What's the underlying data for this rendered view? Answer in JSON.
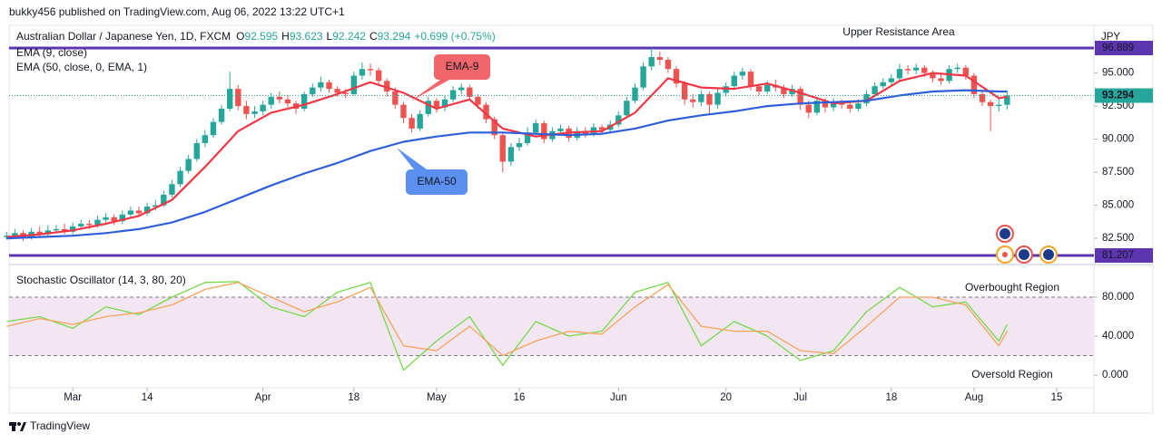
{
  "header": {
    "publisher": "bukky456 published on TradingView.com, Aug 06, 2022 13:22 UTC+1"
  },
  "chart_data": [
    {
      "type": "candlestick",
      "symbol": "Australian Dollar / Japanese Yen, 1D, FXCM",
      "ohlc_legend": [
        {
          "key": "O",
          "value": "92.595"
        },
        {
          "key": "H",
          "value": "93.623"
        },
        {
          "key": "L",
          "value": "92.242"
        },
        {
          "key": "C",
          "value": "93.294"
        }
      ],
      "change": "+0.699 (+0.75%)",
      "currency": "JPY",
      "up_color": "#26a69a",
      "down_color": "#ef5350",
      "x": [
        -8,
        -7,
        -6,
        -5,
        -4,
        -3,
        -2,
        -1,
        0,
        1,
        2,
        3,
        4,
        5,
        6,
        7,
        8,
        9,
        10,
        11,
        12,
        13,
        14,
        15,
        16,
        17,
        18,
        19,
        20,
        21,
        22,
        23,
        24,
        25,
        26,
        27,
        28,
        29,
        30,
        31,
        32,
        33,
        34,
        35,
        36,
        37,
        38,
        39,
        40,
        41,
        42,
        43,
        44,
        45,
        46,
        47,
        48,
        49,
        50,
        51,
        52,
        53,
        54,
        55,
        56,
        57,
        58,
        59,
        60,
        61,
        62,
        63,
        64,
        65,
        66,
        67,
        68,
        69,
        70,
        71,
        72,
        73,
        74,
        75,
        76,
        77,
        78,
        79,
        80,
        81,
        82,
        83,
        84,
        85,
        86,
        87,
        88,
        89,
        90,
        91,
        92,
        93,
        94,
        95,
        96,
        97,
        98,
        99,
        100,
        101,
        102,
        103,
        104,
        105,
        106,
        107,
        108,
        109,
        110,
        111,
        112,
        113
      ],
      "ohlc": [
        [
          82.6,
          83.0,
          82.4,
          82.7
        ],
        [
          82.7,
          83.2,
          82.5,
          82.9
        ],
        [
          82.9,
          83.1,
          82.3,
          82.6
        ],
        [
          82.6,
          83.3,
          82.4,
          83.0
        ],
        [
          83.0,
          83.4,
          82.6,
          82.8
        ],
        [
          82.8,
          83.5,
          82.6,
          83.1
        ],
        [
          83.1,
          83.5,
          82.9,
          83.2
        ],
        [
          83.2,
          83.6,
          82.8,
          83.0
        ],
        [
          83.0,
          83.7,
          82.8,
          83.4
        ],
        [
          83.4,
          83.9,
          83.2,
          83.6
        ],
        [
          83.6,
          83.9,
          83.2,
          83.5
        ],
        [
          83.5,
          84.2,
          83.3,
          83.9
        ],
        [
          83.9,
          84.4,
          83.7,
          84.1
        ],
        [
          84.1,
          84.3,
          83.5,
          83.8
        ],
        [
          83.8,
          84.6,
          83.6,
          84.3
        ],
        [
          84.3,
          84.9,
          84.0,
          84.6
        ],
        [
          84.6,
          84.9,
          84.1,
          84.4
        ],
        [
          84.4,
          85.2,
          84.2,
          84.9
        ],
        [
          84.9,
          85.4,
          84.6,
          85.0
        ],
        [
          85.0,
          86.1,
          84.9,
          85.8
        ],
        [
          85.8,
          86.9,
          85.6,
          86.6
        ],
        [
          86.6,
          87.9,
          86.4,
          87.6
        ],
        [
          87.6,
          88.8,
          87.4,
          88.5
        ],
        [
          88.5,
          90.0,
          88.3,
          89.7
        ],
        [
          89.7,
          90.7,
          89.4,
          90.3
        ],
        [
          90.3,
          91.6,
          90.1,
          91.3
        ],
        [
          91.3,
          92.6,
          91.1,
          92.3
        ],
        [
          92.3,
          95.1,
          92.1,
          93.8
        ],
        [
          93.8,
          94.1,
          92.2,
          92.5
        ],
        [
          92.5,
          92.9,
          91.5,
          91.9
        ],
        [
          91.9,
          92.5,
          91.6,
          92.1
        ],
        [
          92.1,
          92.9,
          91.8,
          92.6
        ],
        [
          92.6,
          93.5,
          92.3,
          93.2
        ],
        [
          93.2,
          93.6,
          92.7,
          93.0
        ],
        [
          93.0,
          93.3,
          92.4,
          92.7
        ],
        [
          92.7,
          92.9,
          91.9,
          92.3
        ],
        [
          92.3,
          93.6,
          92.1,
          93.4
        ],
        [
          93.4,
          94.2,
          93.2,
          93.9
        ],
        [
          93.9,
          94.7,
          93.6,
          94.3
        ],
        [
          94.3,
          94.5,
          93.5,
          93.8
        ],
        [
          93.8,
          94.0,
          93.2,
          93.5
        ],
        [
          93.5,
          93.8,
          93.1,
          93.4
        ],
        [
          93.4,
          95.1,
          93.3,
          94.8
        ],
        [
          94.8,
          95.8,
          94.5,
          95.3
        ],
        [
          95.3,
          95.7,
          94.8,
          95.2
        ],
        [
          95.2,
          95.4,
          94.1,
          94.4
        ],
        [
          94.4,
          94.6,
          93.2,
          93.6
        ],
        [
          93.6,
          93.9,
          92.3,
          92.6
        ],
        [
          92.6,
          92.8,
          91.2,
          91.6
        ],
        [
          91.6,
          91.9,
          90.5,
          90.8
        ],
        [
          90.8,
          92.2,
          90.6,
          91.9
        ],
        [
          91.9,
          93.2,
          91.7,
          92.9
        ],
        [
          92.9,
          93.1,
          92.0,
          92.4
        ],
        [
          92.4,
          93.3,
          92.1,
          93.0
        ],
        [
          93.0,
          94.0,
          92.8,
          93.7
        ],
        [
          93.7,
          94.2,
          93.4,
          93.9
        ],
        [
          93.9,
          94.1,
          92.9,
          93.2
        ],
        [
          93.2,
          93.4,
          92.3,
          92.6
        ],
        [
          92.6,
          92.8,
          91.2,
          91.5
        ],
        [
          91.5,
          91.7,
          90.0,
          90.3
        ],
        [
          90.3,
          90.5,
          87.5,
          88.3
        ],
        [
          88.3,
          89.7,
          88.0,
          89.4
        ],
        [
          89.4,
          90.1,
          89.1,
          89.7
        ],
        [
          89.7,
          90.9,
          89.5,
          90.5
        ],
        [
          90.5,
          91.5,
          90.3,
          91.2
        ],
        [
          91.2,
          91.4,
          89.7,
          90.0
        ],
        [
          90.0,
          90.9,
          89.8,
          90.6
        ],
        [
          90.6,
          91.1,
          90.3,
          90.8
        ],
        [
          90.8,
          91.0,
          89.8,
          90.1
        ],
        [
          90.1,
          90.9,
          89.9,
          90.6
        ],
        [
          90.6,
          90.9,
          90.1,
          90.4
        ],
        [
          90.4,
          91.2,
          90.2,
          90.9
        ],
        [
          90.9,
          91.1,
          90.4,
          90.7
        ],
        [
          90.7,
          91.4,
          90.5,
          91.1
        ],
        [
          91.1,
          92.1,
          90.9,
          91.8
        ],
        [
          91.8,
          93.2,
          91.6,
          92.9
        ],
        [
          92.9,
          94.2,
          92.7,
          93.9
        ],
        [
          93.9,
          95.8,
          93.7,
          95.5
        ],
        [
          95.5,
          96.9,
          95.2,
          96.2
        ],
        [
          96.2,
          96.6,
          95.6,
          96.0
        ],
        [
          96.0,
          96.2,
          95.0,
          95.3
        ],
        [
          95.3,
          95.5,
          93.9,
          94.2
        ],
        [
          94.2,
          94.4,
          92.6,
          93.0
        ],
        [
          93.0,
          93.4,
          92.4,
          92.8
        ],
        [
          92.8,
          93.7,
          92.5,
          93.4
        ],
        [
          93.4,
          93.6,
          91.9,
          92.6
        ],
        [
          92.6,
          93.8,
          92.3,
          93.5
        ],
        [
          93.5,
          94.3,
          93.2,
          94.0
        ],
        [
          94.0,
          95.1,
          93.8,
          94.8
        ],
        [
          94.8,
          95.4,
          94.5,
          95.1
        ],
        [
          95.1,
          95.3,
          93.7,
          94.0
        ],
        [
          94.0,
          94.2,
          93.3,
          93.6
        ],
        [
          93.6,
          94.4,
          93.4,
          94.1
        ],
        [
          94.1,
          94.5,
          93.6,
          93.9
        ],
        [
          93.9,
          94.1,
          93.1,
          93.4
        ],
        [
          93.4,
          94.1,
          93.2,
          93.8
        ],
        [
          93.8,
          94.0,
          92.2,
          92.6
        ],
        [
          92.6,
          92.9,
          91.6,
          92.0
        ],
        [
          92.0,
          93.2,
          91.8,
          92.9
        ],
        [
          92.9,
          93.1,
          92.0,
          92.4
        ],
        [
          92.4,
          93.1,
          92.1,
          92.8
        ],
        [
          92.8,
          93.0,
          92.3,
          92.6
        ],
        [
          92.6,
          92.9,
          92.0,
          92.3
        ],
        [
          92.3,
          93.0,
          92.1,
          92.7
        ],
        [
          92.7,
          93.7,
          92.5,
          93.4
        ],
        [
          93.4,
          94.3,
          93.2,
          94.0
        ],
        [
          94.0,
          94.6,
          93.8,
          94.3
        ],
        [
          94.3,
          94.9,
          94.0,
          94.6
        ],
        [
          94.6,
          95.7,
          94.4,
          95.3
        ],
        [
          95.3,
          95.6,
          94.9,
          95.2
        ],
        [
          95.2,
          95.7,
          94.9,
          95.4
        ],
        [
          95.4,
          95.6,
          94.7,
          95.0
        ],
        [
          95.0,
          95.2,
          94.3,
          94.6
        ],
        [
          94.6,
          94.9,
          94.1,
          94.4
        ],
        [
          94.4,
          95.6,
          94.2,
          95.3
        ],
        [
          95.3,
          95.7,
          95.0,
          95.4
        ],
        [
          95.4,
          95.6,
          94.5,
          94.8
        ],
        [
          94.8,
          95.0,
          93.1,
          93.4
        ],
        [
          93.4,
          93.6,
          92.5,
          92.8
        ],
        [
          92.8,
          93.0,
          90.6,
          92.5
        ],
        [
          92.5,
          93.1,
          92.1,
          92.595
        ],
        [
          92.595,
          93.623,
          92.242,
          93.294
        ]
      ],
      "series": [
        {
          "name": "EMA (9, close)",
          "color": "#f23645",
          "x": [
            -8,
            -4,
            0,
            4,
            8,
            12,
            16,
            20,
            24,
            28,
            32,
            36,
            40,
            44,
            48,
            52,
            56,
            60,
            64,
            68,
            72,
            76,
            80,
            84,
            88,
            92,
            96,
            100,
            104,
            108,
            112,
            113
          ],
          "values": [
            82.6,
            82.8,
            83.1,
            83.6,
            84.2,
            85.4,
            87.9,
            90.6,
            92.0,
            92.6,
            93.4,
            94.3,
            93.5,
            92.3,
            93.0,
            90.8,
            90.2,
            90.5,
            90.6,
            92.0,
            94.6,
            93.9,
            93.8,
            94.2,
            93.5,
            92.7,
            92.9,
            94.4,
            95.0,
            94.8,
            93.1,
            93.2
          ]
        },
        {
          "name": "EMA (50, close, 0, EMA, 1)",
          "color": "#2f5fd8",
          "x": [
            -8,
            -4,
            0,
            4,
            8,
            12,
            16,
            20,
            24,
            28,
            32,
            36,
            40,
            44,
            48,
            52,
            56,
            60,
            64,
            68,
            72,
            76,
            80,
            84,
            88,
            92,
            96,
            100,
            104,
            108,
            112,
            113
          ],
          "values": [
            82.5,
            82.6,
            82.7,
            82.9,
            83.2,
            83.7,
            84.5,
            85.5,
            86.5,
            87.4,
            88.2,
            89.1,
            89.8,
            90.2,
            90.5,
            90.5,
            90.4,
            90.3,
            90.4,
            90.8,
            91.4,
            91.8,
            92.1,
            92.5,
            92.7,
            92.8,
            92.9,
            93.3,
            93.6,
            93.7,
            93.6,
            93.6
          ]
        }
      ],
      "levels": [
        {
          "value": 96.889,
          "label": "96.889",
          "color": "#5e35b1"
        },
        {
          "value": 81.207,
          "label": "81.207",
          "color": "#5e35b1"
        }
      ],
      "last_price": {
        "value": 93.294,
        "label": "93.294",
        "color": "#26a69a"
      },
      "annotations": [
        "Upper Resistance Area",
        "EMA-9",
        "EMA-50"
      ],
      "xlim": [
        -7.7,
        123.5
      ],
      "ylim": [
        81.0,
        98.6
      ],
      "yticks": [
        {
          "value": 82.5,
          "label": "82.500"
        },
        {
          "value": 85,
          "label": "85.000"
        },
        {
          "value": 87.5,
          "label": "87.500"
        },
        {
          "value": 90,
          "label": "90.000"
        },
        {
          "value": 92.5,
          "label": "92.500"
        },
        {
          "value": 95,
          "label": "95.000"
        }
      ],
      "xticks": [
        {
          "value": 0,
          "label": "Mar"
        },
        {
          "value": 9,
          "label": "14"
        },
        {
          "value": 23,
          "label": "Apr"
        },
        {
          "value": 34,
          "label": "18"
        },
        {
          "value": 44,
          "label": "May"
        },
        {
          "value": 54,
          "label": "16"
        },
        {
          "value": 66,
          "label": "Jun"
        },
        {
          "value": 79,
          "label": "20"
        },
        {
          "value": 88,
          "label": "Jul"
        },
        {
          "value": 99,
          "label": "18"
        },
        {
          "value": 109,
          "label": "Aug"
        },
        {
          "value": 119,
          "label": "15"
        }
      ]
    },
    {
      "type": "line",
      "title": "Stochastic Oscillator (14, 3, 80, 20)",
      "series": [
        {
          "color": "#76d94a",
          "x": [
            -8,
            -4,
            0,
            4,
            8,
            12,
            16,
            20,
            24,
            28,
            32,
            36,
            40,
            44,
            48,
            52,
            56,
            60,
            64,
            68,
            72,
            76,
            80,
            84,
            88,
            92,
            96,
            100,
            104,
            108,
            112,
            113
          ],
          "values": [
            55,
            60,
            48,
            70,
            62,
            80,
            95,
            96,
            70,
            60,
            85,
            95,
            5,
            35,
            60,
            10,
            55,
            40,
            45,
            85,
            95,
            30,
            55,
            40,
            15,
            25,
            65,
            90,
            70,
            75,
            35,
            52
          ]
        },
        {
          "color": "#f7a35c",
          "x": [
            -8,
            -4,
            0,
            4,
            8,
            12,
            16,
            20,
            24,
            28,
            32,
            36,
            40,
            44,
            48,
            52,
            56,
            60,
            64,
            68,
            72,
            76,
            80,
            84,
            88,
            92,
            96,
            100,
            104,
            108,
            112,
            113
          ],
          "values": [
            50,
            58,
            52,
            60,
            64,
            72,
            88,
            95,
            80,
            65,
            75,
            90,
            30,
            25,
            50,
            20,
            35,
            45,
            42,
            70,
            93,
            50,
            45,
            45,
            25,
            22,
            50,
            80,
            80,
            72,
            30,
            45
          ]
        }
      ],
      "band": [
        20,
        80
      ],
      "band_color": "#f3e6f3",
      "annotations": [
        "Overbought Region",
        "Oversold Region"
      ],
      "xlim": [
        -7.7,
        123.5
      ],
      "ylim": [
        -13,
        106
      ],
      "yticks": [
        {
          "value": 0,
          "label": "0.000"
        },
        {
          "value": 40,
          "label": "40.000"
        },
        {
          "value": 80,
          "label": "80.000"
        }
      ]
    }
  ],
  "footer": {
    "brand": "TradingView"
  }
}
